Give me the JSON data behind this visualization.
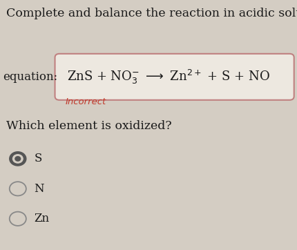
{
  "bg_color": "#d4cdc3",
  "title_text": "Complete and balance the reaction in acidic solution.",
  "title_fontsize": 12.5,
  "title_color": "#1a1a1a",
  "equation_label": "equation:",
  "equation_label_fontsize": 12,
  "equation_mathtext": "ZnS + NO$_3^{-}$ $\\longrightarrow$ Zn$^{2+}$ + S + NO",
  "equation_fontsize": 13,
  "equation_color": "#1a1a1a",
  "box_edgecolor": "#c08080",
  "box_facecolor": "#ede8e0",
  "incorrect_text": "Incorrect",
  "incorrect_color": "#c0392b",
  "incorrect_fontsize": 9.5,
  "question_text": "Which element is oxidized?",
  "question_fontsize": 12.5,
  "question_color": "#1a1a1a",
  "options": [
    "S",
    "N",
    "Zn"
  ],
  "option_fontsize": 12,
  "option_color": "#1a1a1a",
  "selected_index": 0,
  "selected_radio_color": "#555555",
  "unselected_radio_color": "#888888"
}
